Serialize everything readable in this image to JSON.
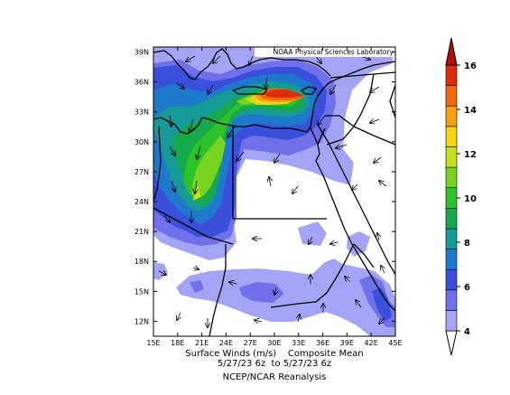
{
  "credit": "NOAA Physical Sciences Laboratory",
  "caption": {
    "line1": "Surface Winds (m/s)    Composite Mean",
    "line2": "5/27/23 6z  to 5/27/23 6z",
    "line3": "NCEP/NCAR Reanalysis"
  },
  "lat_labels": [
    "39N",
    "36N",
    "33N",
    "30N",
    "27N",
    "24N",
    "21N",
    "18N",
    "15N",
    "12N"
  ],
  "lon_labels": [
    "15E",
    "18E",
    "21E",
    "24E",
    "27E",
    "30E",
    "33E",
    "36E",
    "39E",
    "42E",
    "45E"
  ],
  "colorbar": {
    "tick_labels": [
      "4",
      "6",
      "8",
      "10",
      "12",
      "14",
      "16"
    ],
    "levels": [
      4,
      5,
      6,
      7,
      8,
      9,
      10,
      11,
      12,
      13,
      14,
      15,
      16
    ],
    "colors": [
      "#ffffff",
      "#a4a4f6",
      "#7070ea",
      "#3a50dc",
      "#1e78cc",
      "#169a98",
      "#18a84c",
      "#2cc22a",
      "#78d420",
      "#c8e01c",
      "#f6d414",
      "#f6a00e",
      "#ee6a0c",
      "#dc2c0a",
      "#b01006"
    ]
  },
  "colors": {
    "land_lines": "#000000",
    "background": "#ffffff"
  }
}
